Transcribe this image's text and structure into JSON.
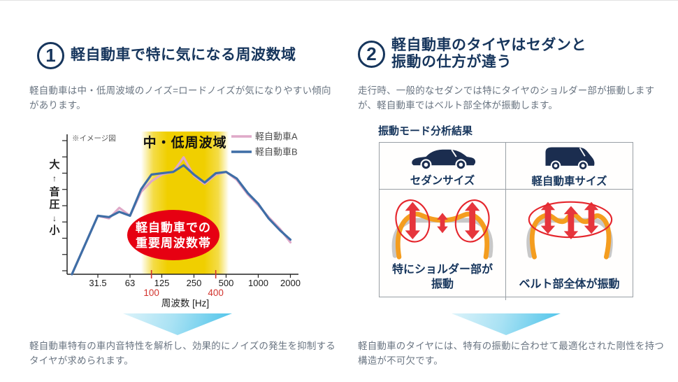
{
  "colors": {
    "navy": "#16355c",
    "body_text": "#6a7582",
    "accent_red": "#e60012",
    "band_yellow": "#f0cf00",
    "line_a_pink": "#dfa9c8",
    "line_b_blue": "#3e6ea6",
    "tire_orange": "#f49d1f",
    "tire_gray": "#c8c8c8",
    "vibration_arrow_red": "#e6353c",
    "chevron_cyan": "#49c2e9"
  },
  "left_panel": {
    "number": "1",
    "title": "軽自動車で特に気になる周波数域",
    "intro": "軽自動車は中・低周波域のノイズ=ロードノイズが気になりやすい傾向があります。",
    "conclusion": "軽自動車特有の車内音特性を解析し、効果的にノイズの発生を抑制するタイヤが求められます。"
  },
  "chart_data": {
    "type": "line",
    "note": "※イメージ図",
    "xlabel": "周波数 [Hz]",
    "ylabel": "大↑音圧↓小",
    "x_scale": "log2",
    "x_range_hz": [
      18,
      2300
    ],
    "y_range": [
      0,
      100
    ],
    "grid": false,
    "legend_position": "top-right",
    "y_tick_count": 9,
    "x_ticks": [
      {
        "hz": 31.5,
        "label": "31.5"
      },
      {
        "hz": 63,
        "label": "63"
      },
      {
        "hz": 125,
        "label": "125"
      },
      {
        "hz": 250,
        "label": "250"
      },
      {
        "hz": 500,
        "label": "500"
      },
      {
        "hz": 1000,
        "label": "1000"
      },
      {
        "hz": 2000,
        "label": "2000"
      }
    ],
    "x_ticks_red": [
      {
        "hz": 100,
        "label": "100"
      },
      {
        "hz": 400,
        "label": "400"
      }
    ],
    "band": {
      "label": "中・低周波域",
      "from_hz": 80,
      "to_hz": 530
    },
    "callout": {
      "lines": [
        "軽自動車での",
        "重要周波数帯"
      ]
    },
    "series": [
      {
        "name": "軽自動車A",
        "color": "#dfa9c8",
        "width": 3.2,
        "points": [
          [
            18,
            0
          ],
          [
            31.5,
            44
          ],
          [
            40,
            42
          ],
          [
            50,
            50
          ],
          [
            63,
            44
          ],
          [
            80,
            62
          ],
          [
            100,
            70
          ],
          [
            125,
            75
          ],
          [
            160,
            77
          ],
          [
            200,
            88
          ],
          [
            250,
            74
          ],
          [
            315,
            68
          ],
          [
            400,
            75
          ],
          [
            500,
            77
          ],
          [
            630,
            71
          ],
          [
            800,
            60
          ],
          [
            1000,
            52
          ],
          [
            1250,
            43
          ],
          [
            1600,
            34
          ],
          [
            2000,
            24
          ]
        ]
      },
      {
        "name": "軽自動車B",
        "color": "#3e6ea6",
        "width": 3.2,
        "points": [
          [
            18,
            0
          ],
          [
            31.5,
            44
          ],
          [
            40,
            43
          ],
          [
            50,
            47
          ],
          [
            63,
            44
          ],
          [
            80,
            64
          ],
          [
            100,
            75
          ],
          [
            125,
            76
          ],
          [
            160,
            77
          ],
          [
            200,
            82
          ],
          [
            250,
            75
          ],
          [
            315,
            69
          ],
          [
            400,
            76
          ],
          [
            500,
            77
          ],
          [
            630,
            72
          ],
          [
            800,
            61
          ],
          [
            1000,
            53
          ],
          [
            1250,
            42
          ],
          [
            1600,
            33
          ],
          [
            2000,
            26
          ]
        ]
      }
    ]
  },
  "right_panel": {
    "number": "2",
    "title_lines": [
      "軽自動車のタイヤはセダンと",
      "振動の仕方が違う"
    ],
    "intro": "走行時、一般的なセダンでは特にタイヤのショルダー部が振動しますが、軽自動車ではベルト部全体が振動します。",
    "analysis_title": "振動モード分析結果",
    "table": {
      "columns": [
        {
          "header": "セダンサイズ",
          "icon": "sedan-car-icon",
          "caption_lines": [
            "特にショルダー部が",
            "振動"
          ]
        },
        {
          "header": "軽自動車サイズ",
          "icon": "kei-car-icon",
          "caption_lines": [
            "ベルト部全体が振動"
          ]
        }
      ]
    },
    "conclusion": "軽自動車のタイヤには、特有の振動に合わせて最適化された剛性を持つ構造が不可欠です。"
  }
}
